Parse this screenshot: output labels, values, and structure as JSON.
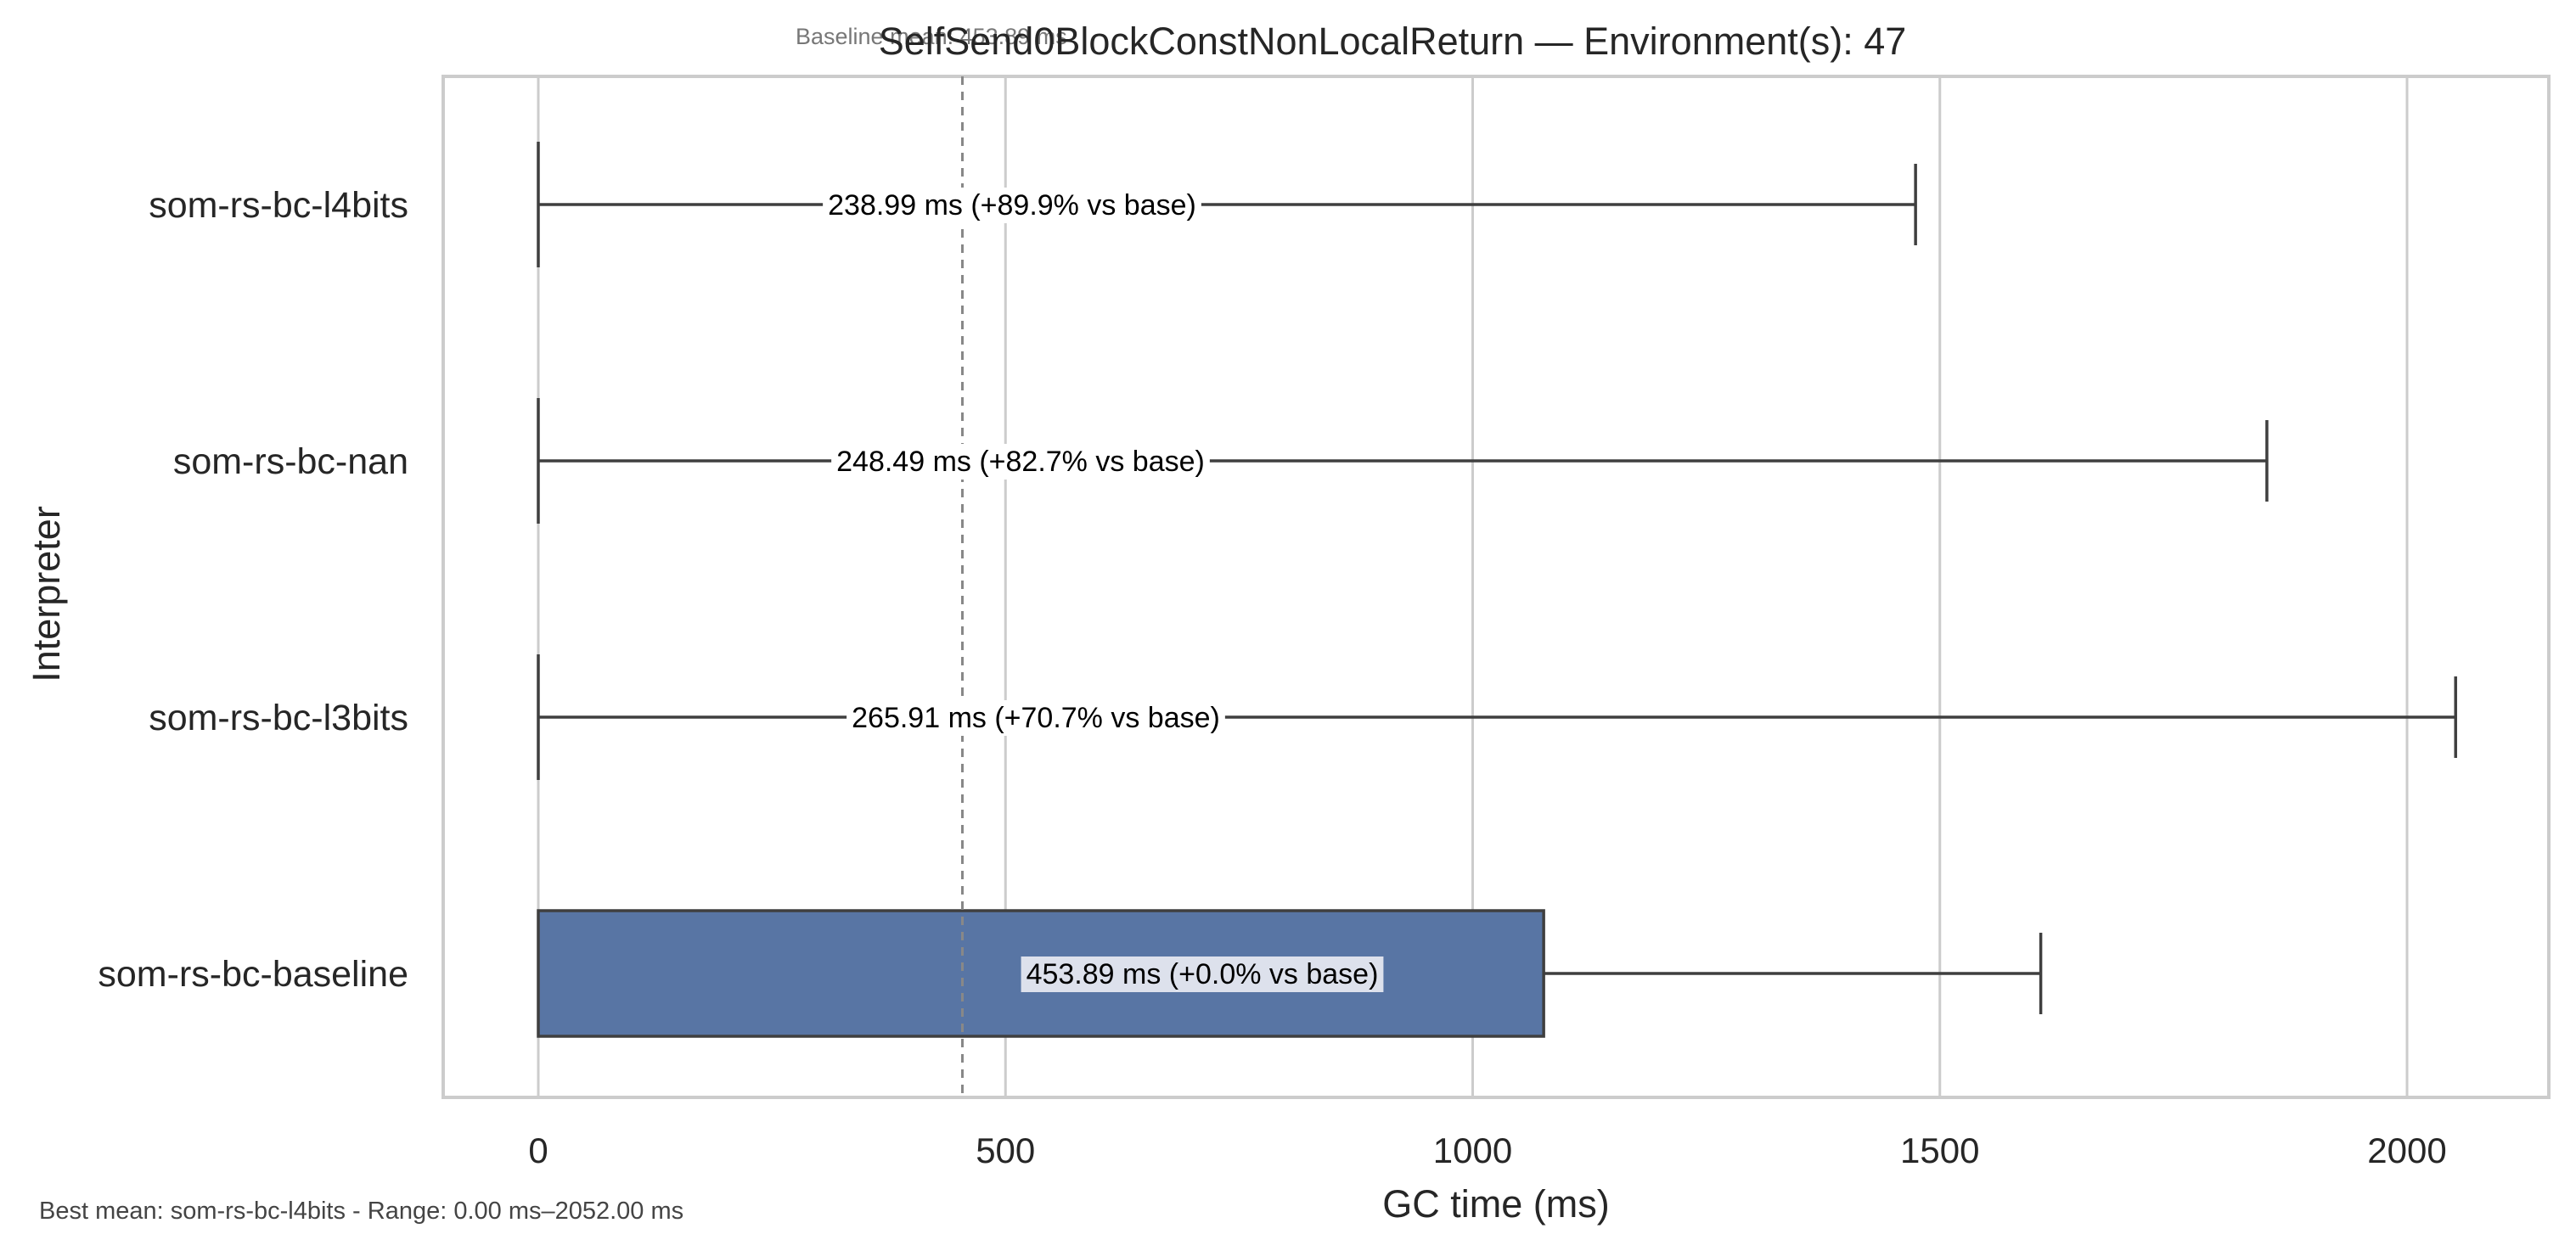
{
  "chart_data": {
    "type": "box",
    "orientation": "horizontal",
    "title": "SelfSend0BlockConstNonLocalReturn — Environment(s): 47",
    "baseline_note": "Baseline mean: 453.89 ms",
    "xlabel": "GC time (ms)",
    "ylabel": "Interpreter",
    "xlim": [
      -100,
      2150
    ],
    "xticks": [
      0,
      500,
      1000,
      1500,
      2000
    ],
    "x_tick_labels": [
      "0",
      "500",
      "1000",
      "1500",
      "2000"
    ],
    "grid": "vertical",
    "baseline_line": 453.89,
    "categories": [
      "som-rs-bc-l4bits",
      "som-rs-bc-nan",
      "som-rs-bc-l3bits",
      "som-rs-bc-baseline"
    ],
    "boxes": [
      {
        "category": "som-rs-bc-l4bits",
        "whisker_low": 0,
        "q1": 0,
        "median": 0,
        "q3": 0,
        "whisker_high": 1474,
        "label": "238.99 ms  (+89.9% vs base)",
        "box_color": "#5875a4"
      },
      {
        "category": "som-rs-bc-nan",
        "whisker_low": 0,
        "q1": 0,
        "median": 0,
        "q3": 0,
        "whisker_high": 1850,
        "label": "248.49 ms  (+82.7% vs base)",
        "box_color": "#5875a4"
      },
      {
        "category": "som-rs-bc-l3bits",
        "whisker_low": 0,
        "q1": 0,
        "median": 0,
        "q3": 0,
        "whisker_high": 2052,
        "label": "265.91 ms  (+70.7% vs base)",
        "box_color": "#5875a4"
      },
      {
        "category": "som-rs-bc-baseline",
        "whisker_low": 0,
        "q1": 0,
        "median": 0,
        "q3": 1076,
        "whisker_high": 1608,
        "label": "453.89 ms  (+0.0% vs base)",
        "box_color": "#5875a4",
        "label_highlight": true
      }
    ],
    "footer": "Best mean: som-rs-bc-l4bits - Range: 0.00 ms–2052.00 ms",
    "colors": {
      "box_fill": "#5875a4",
      "box_edge": "#3f3f3f",
      "whisker": "#3f3f3f",
      "grid": "#cccccc",
      "frame": "#cccccc",
      "baseline_line": "#888888",
      "label_highlight_bg": "#dde1ec"
    }
  }
}
